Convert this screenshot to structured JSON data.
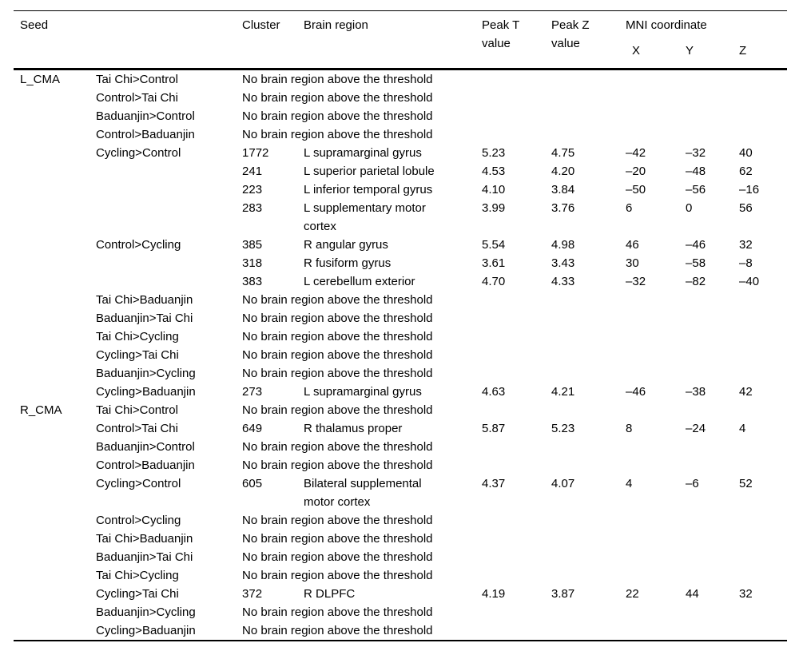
{
  "table": {
    "headers": {
      "seed": "Seed",
      "cluster": "Cluster",
      "brain_region": "Brain region",
      "peak_t": "Peak T\nvalue",
      "peak_z": "Peak Z\nvalue",
      "mni": "MNI coordinate",
      "x": "X",
      "y": "Y",
      "z": "Z"
    },
    "rows": [
      {
        "seed": "L_CMA",
        "contrast": "Tai Chi>Control",
        "note": "No brain region above the threshold"
      },
      {
        "seed": "",
        "contrast": "Control>Tai Chi",
        "note": "No brain region above the threshold"
      },
      {
        "seed": "",
        "contrast": "Baduanjin>Control",
        "note": "No brain region above the threshold"
      },
      {
        "seed": "",
        "contrast": "Control>Baduanjin",
        "note": "No brain region above the threshold"
      },
      {
        "seed": "",
        "contrast": "Cycling>Control",
        "cluster": "1772",
        "region": "L supramarginal gyrus",
        "peak_t": "5.23",
        "peak_z": "4.75",
        "x": "–42",
        "y": "–32",
        "z": "40"
      },
      {
        "seed": "",
        "contrast": "",
        "cluster": "241",
        "region": "L superior parietal lobule",
        "peak_t": "4.53",
        "peak_z": "4.20",
        "x": "–20",
        "y": "–48",
        "z": "62"
      },
      {
        "seed": "",
        "contrast": "",
        "cluster": "223",
        "region": "L inferior temporal gyrus",
        "peak_t": "4.10",
        "peak_z": "3.84",
        "x": "–50",
        "y": "–56",
        "z": "–16"
      },
      {
        "seed": "",
        "contrast": "",
        "cluster": "283",
        "region": "L supplementary motor\ncortex",
        "peak_t": "3.99",
        "peak_z": "3.76",
        "x": "6",
        "y": "0",
        "z": "56"
      },
      {
        "seed": "",
        "contrast": "Control>Cycling",
        "cluster": "385",
        "region": "R angular gyrus",
        "peak_t": "5.54",
        "peak_z": "4.98",
        "x": "46",
        "y": "–46",
        "z": "32"
      },
      {
        "seed": "",
        "contrast": "",
        "cluster": "318",
        "region": "R fusiform gyrus",
        "peak_t": "3.61",
        "peak_z": "3.43",
        "x": "30",
        "y": "–58",
        "z": "–8"
      },
      {
        "seed": "",
        "contrast": "",
        "cluster": "383",
        "region": "L cerebellum exterior",
        "peak_t": "4.70",
        "peak_z": "4.33",
        "x": "–32",
        "y": "–82",
        "z": "–40"
      },
      {
        "seed": "",
        "contrast": "Tai Chi>Baduanjin",
        "note": "No brain region above the threshold"
      },
      {
        "seed": "",
        "contrast": "Baduanjin>Tai Chi",
        "note": "No brain region above the threshold"
      },
      {
        "seed": "",
        "contrast": "Tai Chi>Cycling",
        "note": "No brain region above the threshold"
      },
      {
        "seed": "",
        "contrast": "Cycling>Tai Chi",
        "note": "No brain region above the threshold"
      },
      {
        "seed": "",
        "contrast": "Baduanjin>Cycling",
        "note": "No brain region above the threshold"
      },
      {
        "seed": "",
        "contrast": "Cycling>Baduanjin",
        "cluster": "273",
        "region": "L supramarginal gyrus",
        "peak_t": "4.63",
        "peak_z": "4.21",
        "x": "–46",
        "y": "–38",
        "z": "42"
      },
      {
        "seed": "R_CMA",
        "contrast": "Tai Chi>Control",
        "note": "No brain region above the threshold"
      },
      {
        "seed": "",
        "contrast": "Control>Tai Chi",
        "cluster": "649",
        "region": "R thalamus proper",
        "peak_t": "5.87",
        "peak_z": "5.23",
        "x": "8",
        "y": "–24",
        "z": "4"
      },
      {
        "seed": "",
        "contrast": "Baduanjin>Control",
        "note": "No brain region above the threshold"
      },
      {
        "seed": "",
        "contrast": "Control>Baduanjin",
        "note": "No brain region above the threshold"
      },
      {
        "seed": "",
        "contrast": "Cycling>Control",
        "cluster": "605",
        "region": "Bilateral supplemental\nmotor cortex",
        "peak_t": "4.37",
        "peak_z": "4.07",
        "x": "4",
        "y": "–6",
        "z": "52"
      },
      {
        "seed": "",
        "contrast": "Control>Cycling",
        "note": "No brain region above the threshold"
      },
      {
        "seed": "",
        "contrast": "Tai Chi>Baduanjin",
        "note": "No brain region above the threshold"
      },
      {
        "seed": "",
        "contrast": "Baduanjin>Tai Chi",
        "note": "No brain region above the threshold"
      },
      {
        "seed": "",
        "contrast": "Tai Chi>Cycling",
        "note": "No brain region above the threshold"
      },
      {
        "seed": "",
        "contrast": "Cycling>Tai Chi",
        "cluster": "372",
        "region": "R DLPFC",
        "peak_t": "4.19",
        "peak_z": "3.87",
        "x": "22",
        "y": "44",
        "z": "32"
      },
      {
        "seed": "",
        "contrast": "Baduanjin>Cycling",
        "note": "No brain region above the threshold"
      },
      {
        "seed": "",
        "contrast": "Cycling>Baduanjin",
        "note": "No brain region above the threshold"
      }
    ]
  },
  "colors": {
    "text": "#000000",
    "rule": "#000000",
    "background": "#ffffff"
  }
}
